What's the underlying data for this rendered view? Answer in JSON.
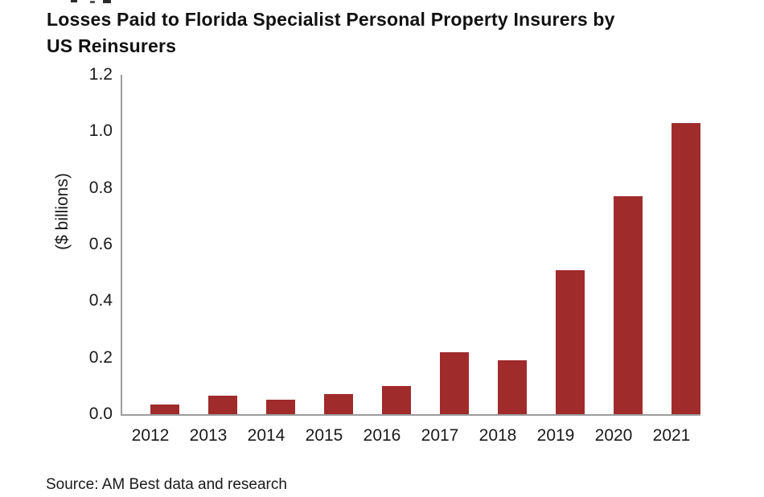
{
  "title": {
    "line1": "Losses Paid to Florida Specialist Personal Property Insurers by",
    "line2": "US Reinsurers"
  },
  "source_note": "Source: AM Best data and research",
  "chart_data": {
    "type": "bar",
    "title": "Losses Paid to Florida Specialist Personal Property Insurers by US Reinsurers",
    "categories": [
      "2012",
      "2013",
      "2014",
      "2015",
      "2016",
      "2017",
      "2018",
      "2019",
      "2020",
      "2021"
    ],
    "values": [
      0.035,
      0.065,
      0.05,
      0.07,
      0.1,
      0.22,
      0.19,
      0.51,
      0.77,
      1.03
    ],
    "xlabel": "",
    "ylabel": "($ billions)",
    "ylim": [
      0,
      1.2
    ],
    "ytick_labels": [
      "0.0",
      "0.2",
      "0.4",
      "0.6",
      "0.8",
      "1.0",
      "1.2"
    ],
    "grid": false,
    "legend": "none",
    "bar_color": "#a02b2b",
    "axis_color": "#9c9c9c",
    "text_color": "#1a1a1a"
  }
}
